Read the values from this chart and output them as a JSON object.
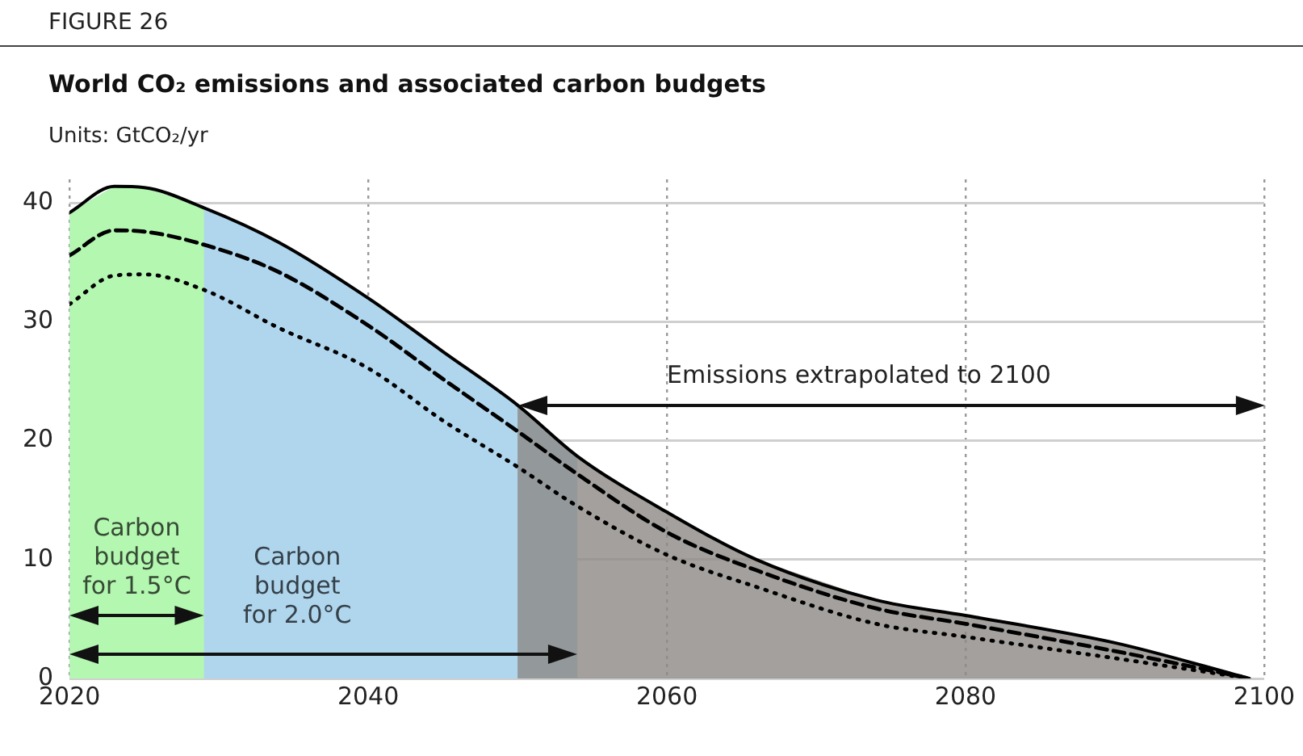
{
  "chart_data": {
    "type": "line",
    "title": "World CO₂ emissions and associated carbon budgets",
    "ylabel": "Units: GtCO₂/yr",
    "annotations": [
      "FIGURE 26"
    ],
    "x": [
      2020,
      2023,
      2025,
      2029,
      2034,
      2040,
      2045,
      2050,
      2054,
      2060,
      2066,
      2074,
      2080,
      2090,
      2099
    ],
    "series": [
      {
        "color": "#000000",
        "line_style": "solid",
        "values": [
          39.2,
          41.4,
          41.3,
          39.6,
          36.7,
          32.0,
          27.5,
          23.0,
          18.7,
          14.0,
          10.0,
          6.6,
          5.3,
          3.0,
          0
        ]
      },
      {
        "color": "#000000",
        "line_style": "dashed",
        "values": [
          35.6,
          37.7,
          37.6,
          36.5,
          34.2,
          29.7,
          25.2,
          20.8,
          17.2,
          12.3,
          9.1,
          5.9,
          4.6,
          2.3,
          0
        ]
      },
      {
        "color": "#000000",
        "line_style": "dotted",
        "values": [
          31.5,
          33.9,
          34.0,
          32.7,
          29.5,
          26.1,
          21.7,
          17.8,
          14.5,
          10.4,
          7.7,
          4.6,
          3.5,
          1.7,
          0
        ]
      }
    ],
    "bands": [
      {
        "axis": "x",
        "from": 2020,
        "to": 2029,
        "label": "Carbon budget for 1.5°C",
        "color": "#b4f7b0"
      },
      {
        "axis": "x",
        "from": 2020,
        "to": 2054,
        "label": "Carbon budget for 2.0°C",
        "color": "#b0d6ee"
      },
      {
        "axis": "x",
        "from": 2050,
        "to": 2100,
        "label": "Emissions extrapolated to 2100",
        "color": "#8c8884"
      }
    ],
    "xlim": [
      2020,
      2100
    ],
    "xticks": [
      2020,
      2040,
      2060,
      2080,
      2100
    ],
    "ylim": [
      0,
      42
    ],
    "yticks": [
      0,
      10,
      20,
      30,
      40
    ],
    "grid": true,
    "legend": false,
    "marker": "none"
  }
}
